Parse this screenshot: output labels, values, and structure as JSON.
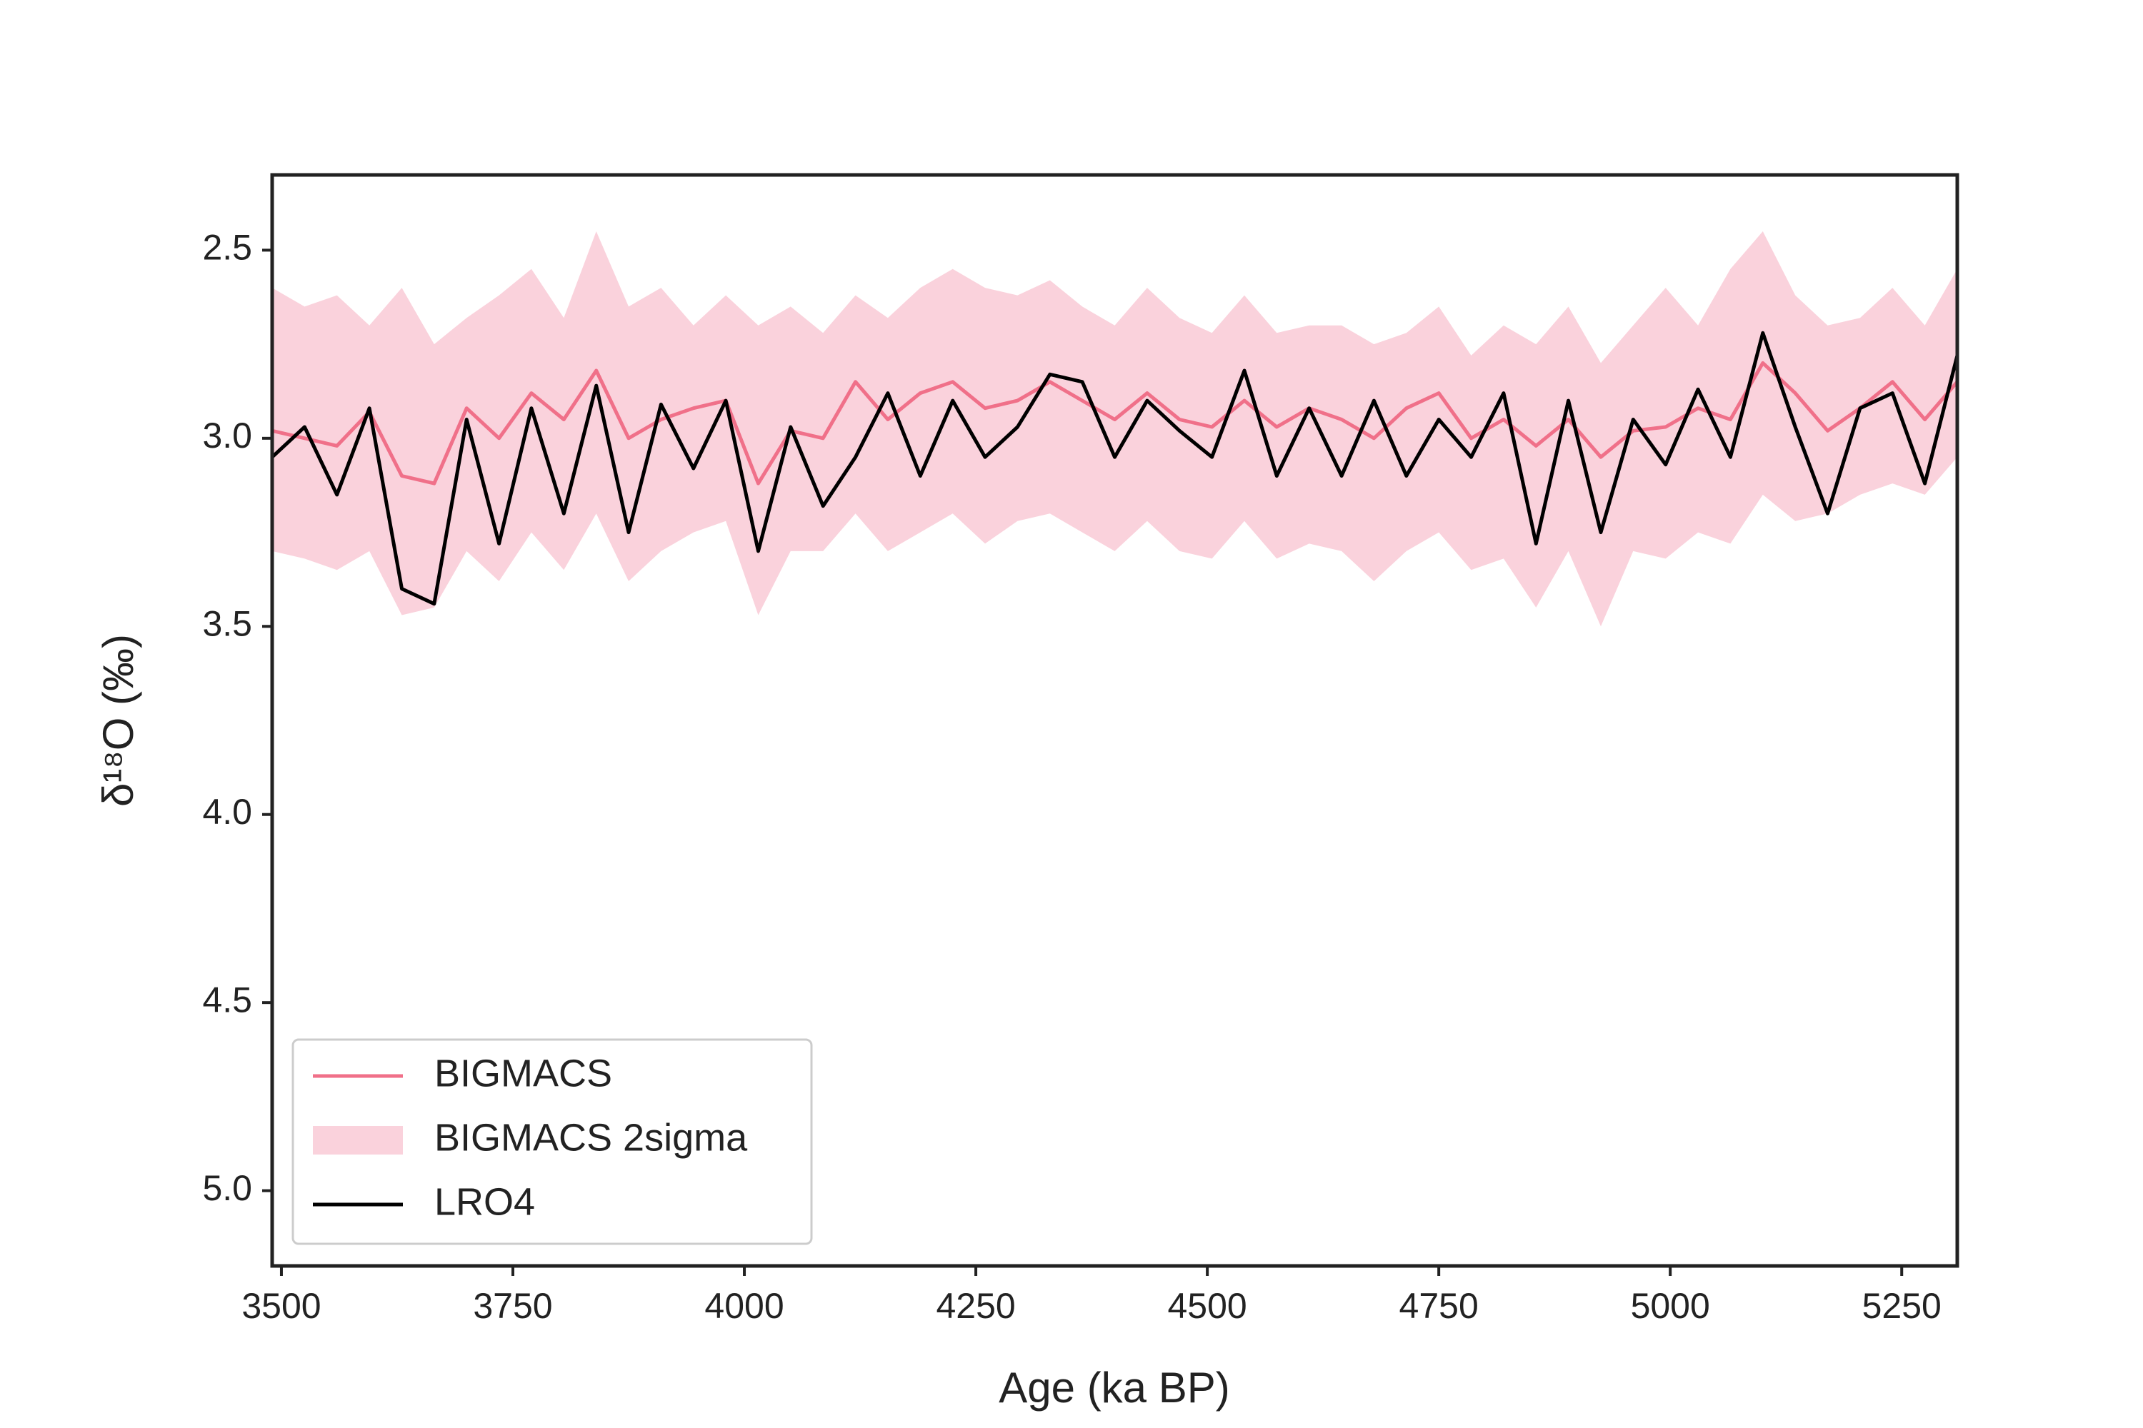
{
  "chart_data": {
    "type": "line",
    "xlabel": "Age (ka BP)",
    "ylabel": "δ¹⁸O (‰)",
    "x": [
      3490,
      3525,
      3560,
      3595,
      3630,
      3665,
      3700,
      3735,
      3770,
      3805,
      3840,
      3875,
      3910,
      3945,
      3980,
      4015,
      4050,
      4085,
      4120,
      4155,
      4190,
      4225,
      4260,
      4295,
      4330,
      4365,
      4400,
      4435,
      4470,
      4505,
      4540,
      4575,
      4610,
      4645,
      4680,
      4715,
      4750,
      4785,
      4820,
      4855,
      4890,
      4925,
      4960,
      4995,
      5030,
      5065,
      5100,
      5135,
      5170,
      5205,
      5240,
      5275,
      5310
    ],
    "series": [
      {
        "name": "BIGMACS",
        "color": "#f07089",
        "values": [
          2.98,
          3.0,
          3.02,
          2.93,
          3.1,
          3.12,
          2.92,
          3.0,
          2.88,
          2.95,
          2.82,
          3.0,
          2.95,
          2.92,
          2.9,
          3.12,
          2.98,
          3.0,
          2.85,
          2.95,
          2.88,
          2.85,
          2.92,
          2.9,
          2.85,
          2.9,
          2.95,
          2.88,
          2.95,
          2.97,
          2.9,
          2.97,
          2.92,
          2.95,
          3.0,
          2.92,
          2.88,
          3.0,
          2.95,
          3.02,
          2.95,
          3.05,
          2.98,
          2.97,
          2.92,
          2.95,
          2.8,
          2.88,
          2.98,
          2.92,
          2.85,
          2.95,
          2.85
        ]
      },
      {
        "name": "BIGMACS 2sigma",
        "color": "#fad2dc",
        "low": [
          2.6,
          2.65,
          2.62,
          2.7,
          2.6,
          2.75,
          2.68,
          2.62,
          2.55,
          2.68,
          2.45,
          2.65,
          2.6,
          2.7,
          2.62,
          2.7,
          2.65,
          2.72,
          2.62,
          2.68,
          2.6,
          2.55,
          2.6,
          2.62,
          2.58,
          2.65,
          2.7,
          2.6,
          2.68,
          2.72,
          2.62,
          2.72,
          2.7,
          2.7,
          2.75,
          2.72,
          2.65,
          2.78,
          2.7,
          2.75,
          2.65,
          2.8,
          2.7,
          2.6,
          2.7,
          2.55,
          2.45,
          2.62,
          2.7,
          2.68,
          2.6,
          2.7,
          2.55
        ],
        "high": [
          3.3,
          3.32,
          3.35,
          3.3,
          3.47,
          3.45,
          3.3,
          3.38,
          3.25,
          3.35,
          3.2,
          3.38,
          3.3,
          3.25,
          3.22,
          3.47,
          3.3,
          3.3,
          3.2,
          3.3,
          3.25,
          3.2,
          3.28,
          3.22,
          3.2,
          3.25,
          3.3,
          3.22,
          3.3,
          3.32,
          3.22,
          3.32,
          3.28,
          3.3,
          3.38,
          3.3,
          3.25,
          3.35,
          3.32,
          3.45,
          3.3,
          3.5,
          3.3,
          3.32,
          3.25,
          3.28,
          3.15,
          3.22,
          3.2,
          3.15,
          3.12,
          3.15,
          3.05
        ]
      },
      {
        "name": "LRO4",
        "color": "#000000",
        "values": [
          3.05,
          2.97,
          3.15,
          2.92,
          3.4,
          3.44,
          2.95,
          3.28,
          2.92,
          3.2,
          2.86,
          3.25,
          2.91,
          3.08,
          2.9,
          3.3,
          2.97,
          3.18,
          3.05,
          2.88,
          3.1,
          2.9,
          3.05,
          2.97,
          2.83,
          2.85,
          3.05,
          2.9,
          2.98,
          3.05,
          2.82,
          3.1,
          2.92,
          3.1,
          2.9,
          3.1,
          2.95,
          3.05,
          2.88,
          3.28,
          2.9,
          3.25,
          2.95,
          3.07,
          2.87,
          3.05,
          2.72,
          2.97,
          3.2,
          2.92,
          2.88,
          3.12,
          2.78
        ]
      }
    ],
    "xlim": [
      3490,
      5310
    ],
    "xticks": [
      3500,
      3750,
      4000,
      4250,
      4500,
      4750,
      5000,
      5250
    ],
    "ylim": [
      2.3,
      5.2
    ],
    "invert_y": true,
    "yticks": [
      2.5,
      {
        "value": 3,
        "label": "3.0"
      },
      3.5,
      {
        "value": 4,
        "label": "4.0"
      },
      4.5,
      {
        "value": 5,
        "label": "5.0"
      }
    ],
    "legend": "lower left"
  }
}
